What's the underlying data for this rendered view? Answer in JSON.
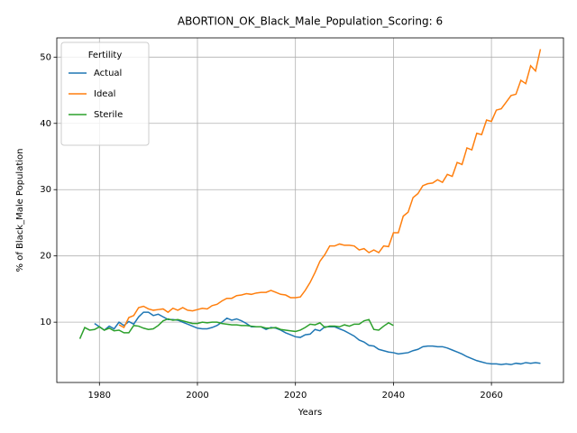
{
  "chart_data": {
    "type": "line",
    "title": "ABORTION_OK_Black_Male_Population_Scoring: 6",
    "xlabel": "Years",
    "ylabel": "% of Black_Male Population",
    "x": [
      1976,
      1977,
      1978,
      1979,
      1980,
      1981,
      1982,
      1983,
      1984,
      1985,
      1986,
      1987,
      1988,
      1989,
      1990,
      1991,
      1992,
      1993,
      1994,
      1995,
      1996,
      1997,
      1998,
      1999,
      2000,
      2001,
      2002,
      2003,
      2004,
      2005,
      2006,
      2007,
      2008,
      2009,
      2010,
      2011,
      2012,
      2013,
      2014,
      2015,
      2016,
      2017,
      2018,
      2019,
      2020,
      2021,
      2022,
      2023,
      2024,
      2025,
      2026,
      2027,
      2028,
      2029,
      2030,
      2031,
      2032,
      2033,
      2034,
      2035,
      2036,
      2037,
      2038,
      2039,
      2040,
      2041,
      2042,
      2043,
      2044,
      2045,
      2046,
      2047,
      2048,
      2049,
      2050,
      2051,
      2052,
      2053,
      2054,
      2055,
      2056,
      2057,
      2058,
      2059,
      2060,
      2061,
      2062,
      2063,
      2064,
      2065,
      2066,
      2067,
      2068,
      2069,
      2070
    ],
    "series": [
      {
        "name": "Actual",
        "color": "#1f77b4",
        "values": [
          null,
          null,
          null,
          9.8,
          9.3,
          8.8,
          9.4,
          9.0,
          10.0,
          9.5,
          10.1,
          9.7,
          10.8,
          11.5,
          11.5,
          11.0,
          11.2,
          10.8,
          10.4,
          10.4,
          10.3,
          10.0,
          9.7,
          9.4,
          9.1,
          9.0,
          9.0,
          9.2,
          9.5,
          10.0,
          10.6,
          10.3,
          10.5,
          10.2,
          9.8,
          9.3,
          9.3,
          9.3,
          8.9,
          9.2,
          9.1,
          8.8,
          8.4,
          8.1,
          7.8,
          7.7,
          8.1,
          8.2,
          8.9,
          8.7,
          9.3,
          9.3,
          9.3,
          9.0,
          8.7,
          8.3,
          7.9,
          7.3,
          7.0,
          6.5,
          6.4,
          5.9,
          5.7,
          5.5,
          5.4,
          5.2,
          5.3,
          5.4,
          5.7,
          5.9,
          6.3,
          6.4,
          6.4,
          6.3,
          6.3,
          6.1,
          5.8,
          5.5,
          5.2,
          4.8,
          4.5,
          4.2,
          4.0,
          3.8,
          3.7,
          3.7,
          3.6,
          3.7,
          3.6,
          3.8,
          3.7,
          3.9,
          3.8,
          3.9,
          3.8
        ]
      },
      {
        "name": "Ideal",
        "color": "#ff7f0e",
        "values": [
          null,
          null,
          null,
          null,
          null,
          null,
          null,
          null,
          9.6,
          9.2,
          10.7,
          11.0,
          12.2,
          12.4,
          12.0,
          11.8,
          11.9,
          12.0,
          11.5,
          12.1,
          11.8,
          12.2,
          11.8,
          11.7,
          11.9,
          12.1,
          12.0,
          12.5,
          12.7,
          13.2,
          13.6,
          13.6,
          14.0,
          14.1,
          14.3,
          14.2,
          14.4,
          14.5,
          14.5,
          14.8,
          14.5,
          14.2,
          14.1,
          13.7,
          13.7,
          13.8,
          14.8,
          16.0,
          17.5,
          19.2,
          20.2,
          21.5,
          21.5,
          21.8,
          21.6,
          21.6,
          21.5,
          20.9,
          21.1,
          20.5,
          20.9,
          20.5,
          21.5,
          21.4,
          23.5,
          23.5,
          26.0,
          26.6,
          28.8,
          29.4,
          30.6,
          30.9,
          31.0,
          31.5,
          31.1,
          32.3,
          32.0,
          34.1,
          33.8,
          36.3,
          36.0,
          38.5,
          38.3,
          40.5,
          40.3,
          42.0,
          42.2,
          43.2,
          44.2,
          44.4,
          46.5,
          46.0,
          48.7,
          47.9,
          51.2
        ]
      },
      {
        "name": "Sterile",
        "color": "#2ca02c",
        "values": [
          7.5,
          9.2,
          8.8,
          8.9,
          9.3,
          8.8,
          9.1,
          8.7,
          8.8,
          8.4,
          8.4,
          9.5,
          9.4,
          9.1,
          8.9,
          9.0,
          9.5,
          10.2,
          10.5,
          10.3,
          10.4,
          10.2,
          10.0,
          9.8,
          9.8,
          10.0,
          9.9,
          10.0,
          10.0,
          9.8,
          9.7,
          9.6,
          9.6,
          9.5,
          9.5,
          9.4,
          9.3,
          9.3,
          9.1,
          9.1,
          9.2,
          8.9,
          8.8,
          8.7,
          8.6,
          8.8,
          9.2,
          9.7,
          9.6,
          9.9,
          9.2,
          9.4,
          9.4,
          9.3,
          9.6,
          9.4,
          9.7,
          9.7,
          10.2,
          10.4,
          8.9,
          8.8,
          9.4,
          9.9,
          9.5,
          null,
          null,
          null,
          null,
          null,
          null,
          null,
          null,
          null,
          null,
          null,
          null,
          null,
          null,
          null,
          null,
          null,
          null,
          null,
          null,
          null,
          null,
          null,
          null,
          null,
          null,
          null,
          null,
          null,
          null
        ]
      }
    ],
    "xlim": [
      1971.3,
      2074.7
    ],
    "xticks": [
      1980,
      2000,
      2020,
      2040,
      2060
    ],
    "ylim": [
      0.9,
      52.9
    ],
    "yticks": [
      10,
      20,
      30,
      40,
      50
    ],
    "grid": true,
    "legend": "upper left",
    "legend_title": "Fertility"
  }
}
